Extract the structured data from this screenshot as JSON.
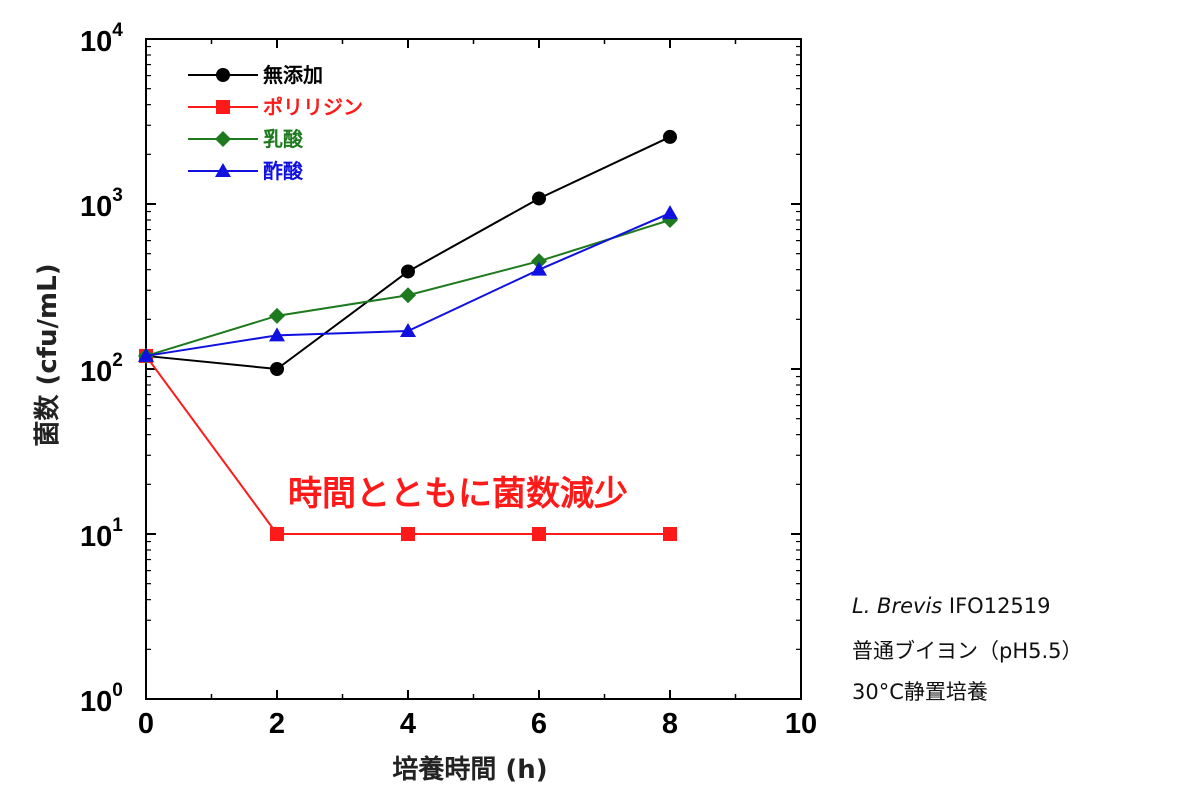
{
  "chart_data": {
    "type": "line",
    "xlabel": "培養時間 (h)",
    "ylabel": "菌数 (cfu/mL)",
    "xlim": [
      0,
      10
    ],
    "ylim": [
      1,
      10000
    ],
    "yscale": "log",
    "x_ticks": [
      "0",
      "2",
      "4",
      "6",
      "8",
      "10"
    ],
    "y_ticks": [
      {
        "base": "10",
        "exp": "0"
      },
      {
        "base": "10",
        "exp": "1"
      },
      {
        "base": "10",
        "exp": "2"
      },
      {
        "base": "10",
        "exp": "3"
      },
      {
        "base": "10",
        "exp": "4"
      }
    ],
    "grid": false,
    "legend_position": "top-left",
    "series": [
      {
        "name": "無添加",
        "color": "#000000",
        "marker": "circle",
        "x": [
          0,
          2,
          4,
          6,
          8
        ],
        "y": [
          120,
          100,
          390,
          1080,
          2550
        ]
      },
      {
        "name": "ポリリジン",
        "color": "#ff1a1a",
        "marker": "square",
        "x": [
          0,
          2,
          4,
          6,
          8
        ],
        "y": [
          120,
          10,
          10,
          10,
          10
        ]
      },
      {
        "name": "乳酸",
        "color": "#1e7a1e",
        "marker": "diamond",
        "x": [
          0,
          2,
          4,
          6,
          8
        ],
        "y": [
          120,
          210,
          280,
          450,
          800
        ]
      },
      {
        "name": "酢酸",
        "color": "#1010e0",
        "marker": "triangle",
        "x": [
          0,
          2,
          4,
          6,
          8
        ],
        "y": [
          120,
          160,
          170,
          400,
          880
        ]
      }
    ],
    "annotation": "時間とともに菌数減少"
  },
  "info": {
    "organism_italic": "L. Brevis",
    "strain": "IFO12519",
    "medium": "普通ブイヨン（pH5.5）",
    "condition": "30°C静置培養"
  }
}
